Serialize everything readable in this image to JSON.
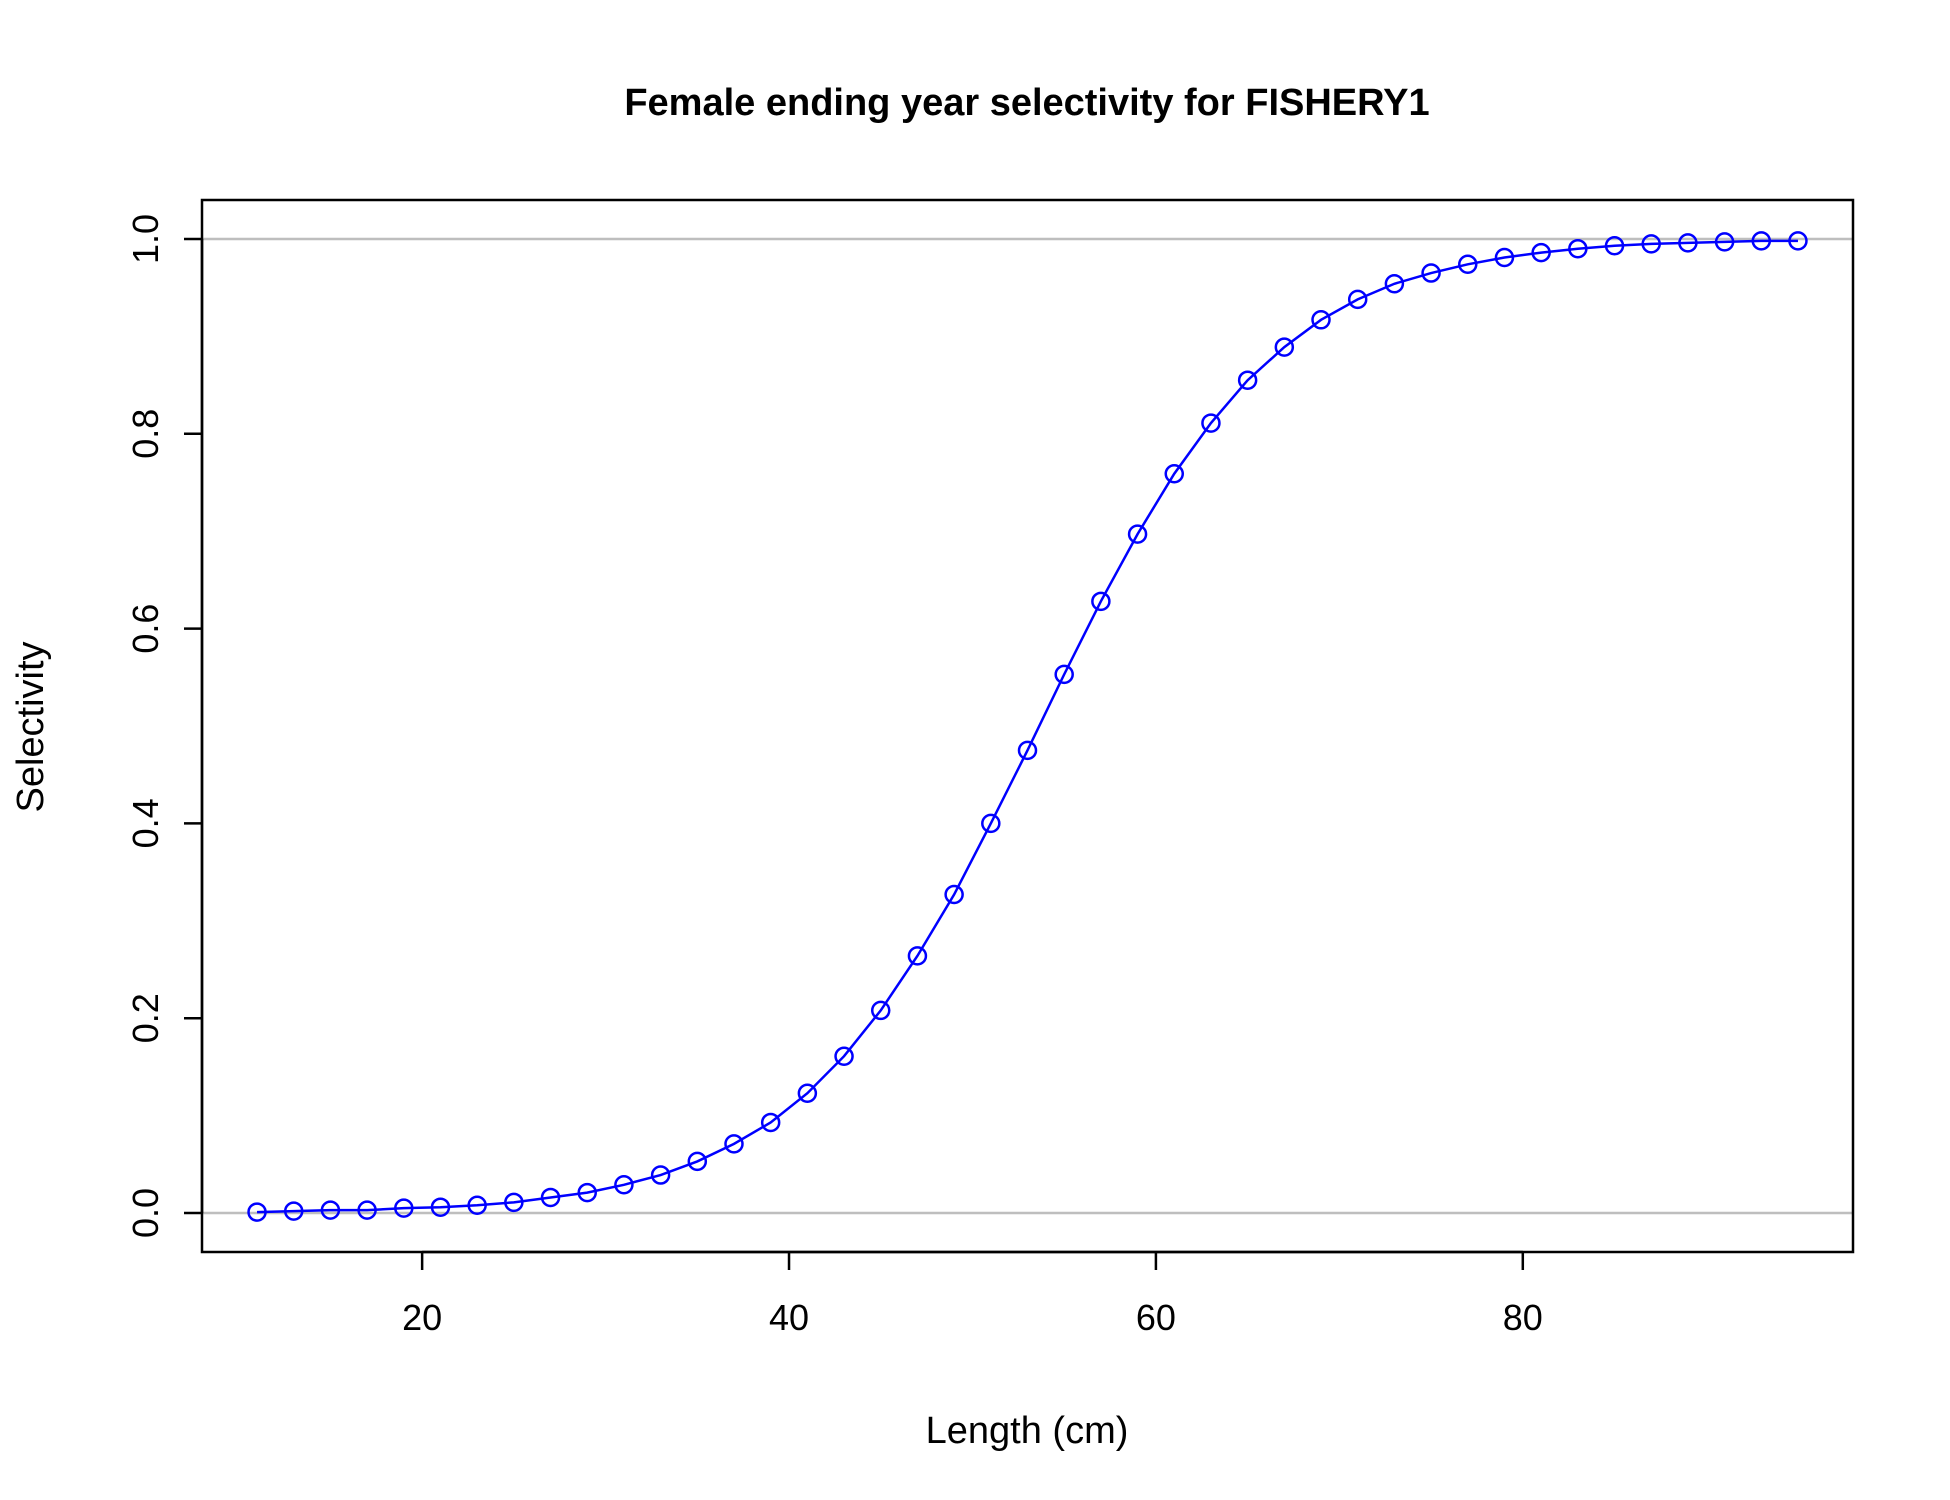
{
  "chart_data": {
    "type": "line",
    "title": "Female ending year selectivity for FISHERY1",
    "xlabel": "Length (cm)",
    "ylabel": "Selectivity",
    "xlim": [
      8,
      98
    ],
    "ylim": [
      -0.04,
      1.04
    ],
    "xticks": [
      20,
      40,
      60,
      80
    ],
    "yticks": [
      0.0,
      0.2,
      0.4,
      0.6,
      0.8,
      1.0
    ],
    "xtick_labels": [
      "20",
      "40",
      "60",
      "80"
    ],
    "ytick_labels": [
      "0.0",
      "0.2",
      "0.4",
      "0.6",
      "0.8",
      "1.0"
    ],
    "reference_lines_y": [
      0,
      1
    ],
    "reference_line_color": "#bebebe",
    "grid": false,
    "legend": "none",
    "series": [
      {
        "color": "#0000ff",
        "marker": "open-circle",
        "x": [
          11,
          13,
          15,
          17,
          19,
          21,
          23,
          25,
          27,
          29,
          31,
          33,
          35,
          37,
          39,
          41,
          43,
          45,
          47,
          49,
          51,
          53,
          55,
          57,
          59,
          61,
          63,
          65,
          67,
          69,
          71,
          73,
          75,
          77,
          79,
          81,
          83,
          85,
          87,
          89,
          91,
          93,
          95
        ],
        "y": [
          0.001,
          0.002,
          0.003,
          0.003,
          0.005,
          0.006,
          0.008,
          0.011,
          0.016,
          0.021,
          0.029,
          0.039,
          0.053,
          0.071,
          0.093,
          0.123,
          0.161,
          0.208,
          0.264,
          0.327,
          0.4,
          0.475,
          0.553,
          0.628,
          0.697,
          0.759,
          0.811,
          0.855,
          0.889,
          0.917,
          0.938,
          0.954,
          0.965,
          0.974,
          0.981,
          0.986,
          0.99,
          0.993,
          0.995,
          0.996,
          0.997,
          0.998,
          0.998
        ]
      }
    ]
  }
}
